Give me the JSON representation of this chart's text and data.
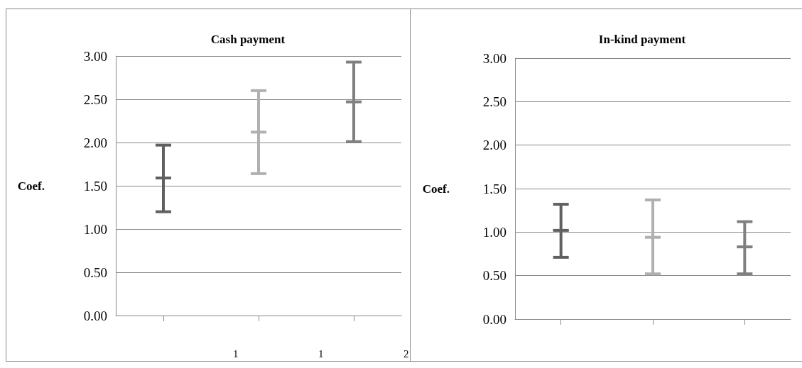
{
  "chart_data": [
    {
      "type": "box",
      "title": "Cash payment",
      "ylabel": "Coef.",
      "categories": [
        null,
        null,
        null
      ],
      "boxes": [
        {
          "low": 1.2,
          "q1": 1.59,
          "median": 1.59,
          "q3": 1.59,
          "high": 1.97
        },
        {
          "low": 1.64,
          "q1": 2.12,
          "median": 2.12,
          "q3": 2.12,
          "high": 2.6
        },
        {
          "low": 2.01,
          "q1": 2.47,
          "median": 2.47,
          "q3": 2.47,
          "high": 2.93
        }
      ],
      "colors": [
        "#606060",
        "#b0b0b0",
        "#808080"
      ],
      "ylim": [
        0,
        3
      ],
      "yticks": [
        {
          "value": 0,
          "label": "0.00"
        },
        {
          "value": 0.5,
          "label": "0.50"
        },
        {
          "value": 1,
          "label": "1.00"
        },
        {
          "value": 1.5,
          "label": "1.50"
        },
        {
          "value": 2,
          "label": "2.00"
        },
        {
          "value": 2.5,
          "label": "2.50"
        },
        {
          "value": 3,
          "label": "3.00"
        }
      ],
      "grid": "y",
      "annotations": [
        "1",
        "1",
        "2"
      ]
    },
    {
      "type": "box",
      "title": "In-kind payment",
      "ylabel": "Coef.",
      "categories": [
        null,
        null,
        null
      ],
      "boxes": [
        {
          "low": 0.71,
          "q1": 1.02,
          "median": 1.02,
          "q3": 1.02,
          "high": 1.32
        },
        {
          "low": 0.52,
          "q1": 0.94,
          "median": 0.94,
          "q3": 0.94,
          "high": 1.37
        },
        {
          "low": 0.52,
          "q1": 0.83,
          "median": 0.83,
          "q3": 0.83,
          "high": 1.12
        }
      ],
      "colors": [
        "#606060",
        "#b0b0b0",
        "#808080"
      ],
      "ylim": [
        0,
        3
      ],
      "yticks": [
        {
          "value": 0,
          "label": "0.00"
        },
        {
          "value": 0.5,
          "label": "0.50"
        },
        {
          "value": 1,
          "label": "1.00"
        },
        {
          "value": 1.5,
          "label": "1.50"
        },
        {
          "value": 2,
          "label": "2.00"
        },
        {
          "value": 2.5,
          "label": "2.50"
        },
        {
          "value": 3,
          "label": "3.00"
        }
      ],
      "grid": "y"
    }
  ]
}
